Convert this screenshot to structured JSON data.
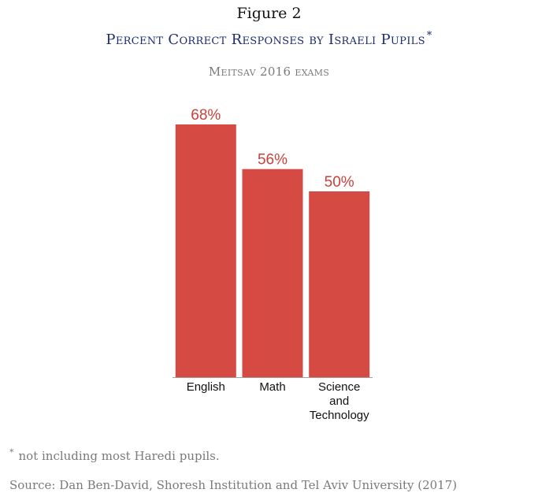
{
  "figure_label": "Figure 2",
  "title": "Percent Correct Responses by Israeli Pupils",
  "title_marker": "*",
  "subtitle": "Meitsav 2016 exams",
  "footnote": {
    "marker": "*",
    "text": "not including most Haredi pupils."
  },
  "source": "Source: Dan Ben-David, Shoresh Institution and Tel Aviv University (2017)",
  "colors": {
    "bar": "#d54a42",
    "data_label": "#c9413a",
    "title": "#1c2c6e",
    "muted_text": "#7a7a7a",
    "axis": "#a0a0a0"
  },
  "chart_data": {
    "type": "bar",
    "title": "Percent Correct Responses by Israeli Pupils",
    "subtitle": "Meitsav 2016 exams",
    "categories": [
      [
        "English"
      ],
      [
        "Math"
      ],
      [
        "Science",
        "and",
        "Technology"
      ]
    ],
    "values": [
      68,
      56,
      50
    ],
    "data_labels": [
      "68%",
      "56%",
      "50%"
    ],
    "ylabel": "",
    "xlabel": "",
    "ylim": [
      0,
      100
    ],
    "grid": false,
    "legend": "none"
  }
}
